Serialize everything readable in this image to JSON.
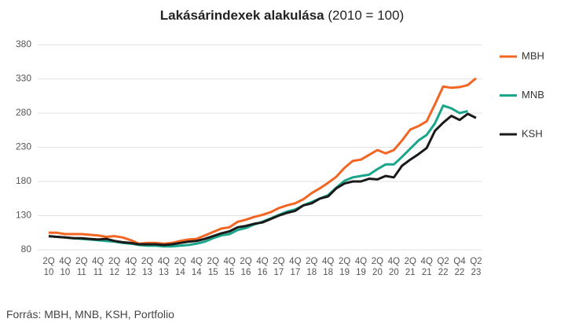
{
  "chart_data": {
    "type": "line",
    "title": "Lakásárindexek alakulása",
    "subtitle": "(2010 = 100)",
    "source": "Forrás: MBH, MNB, KSH, Portfolio",
    "categories": [
      "2Q\n10",
      null,
      "4Q\n10",
      null,
      "2Q\n11",
      null,
      "4Q\n11",
      null,
      "2Q\n12",
      null,
      "4Q\n12",
      null,
      "2Q\n13",
      null,
      "4Q\n13",
      null,
      "2Q\n14",
      null,
      "4Q\n14",
      null,
      "2Q\n15",
      null,
      "4Q\n15",
      null,
      "2Q\n16",
      null,
      "4Q\n16",
      null,
      "2Q\n17",
      null,
      "4Q\n17",
      null,
      "2Q\n18",
      null,
      "4Q\n18",
      null,
      "2Q\n19",
      null,
      "4Q\n19",
      null,
      "2Q\n20",
      null,
      "4Q\n20",
      null,
      "2Q\n21",
      null,
      "4Q\n21",
      null,
      "Q2\n22",
      null,
      "Q4\n22",
      null,
      "Q2\n23"
    ],
    "series": [
      {
        "name": "MBH",
        "color": "#f26522",
        "values": [
          105,
          105,
          103,
          103,
          103,
          102,
          101,
          99,
          100,
          98,
          94,
          89,
          90,
          90,
          89,
          90,
          93,
          95,
          96,
          101,
          106,
          111,
          113,
          121,
          124,
          128,
          131,
          135,
          141,
          145,
          148,
          154,
          163,
          170,
          178,
          187,
          200,
          210,
          212,
          219,
          226,
          221,
          226,
          240,
          256,
          261,
          268,
          293,
          319,
          317,
          318,
          321,
          331
        ]
      },
      {
        "name": "MNB",
        "color": "#1aa58a",
        "values": [
          100,
          99,
          98,
          97,
          96,
          95,
          94,
          93,
          92,
          90,
          89,
          87,
          86,
          86,
          85,
          85,
          86,
          87,
          89,
          92,
          97,
          101,
          103,
          109,
          112,
          117,
          121,
          126,
          131,
          136,
          139,
          145,
          150,
          155,
          160,
          171,
          181,
          186,
          188,
          190,
          198,
          205,
          205,
          216,
          228,
          240,
          248,
          265,
          291,
          287,
          280,
          283,
          null
        ]
      },
      {
        "name": "KSH",
        "color": "#1a1a1a",
        "values": [
          100,
          99,
          98,
          97,
          97,
          96,
          95,
          96,
          93,
          91,
          90,
          88,
          88,
          88,
          87,
          88,
          90,
          92,
          93,
          96,
          100,
          104,
          107,
          113,
          115,
          118,
          120,
          125,
          130,
          134,
          137,
          145,
          148,
          155,
          158,
          170,
          177,
          180,
          180,
          184,
          183,
          188,
          186,
          203,
          212,
          220,
          229,
          254,
          266,
          276,
          270,
          279,
          273
        ]
      }
    ],
    "ylim": [
      80,
      380
    ],
    "yticks": [
      80,
      130,
      180,
      230,
      280,
      330,
      380
    ],
    "grid": true,
    "legend": "right"
  }
}
